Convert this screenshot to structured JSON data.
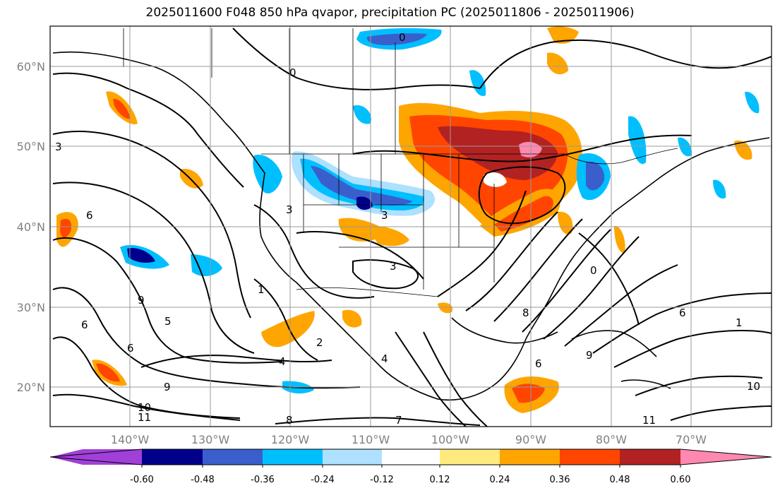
{
  "title": "2025011600 F048 850 hPa qvapor, precipitation PC (2025011806 - 2025011906)",
  "map": {
    "lat_ticks": [
      "60°N",
      "50°N",
      "40°N",
      "30°N",
      "20°N"
    ],
    "lon_ticks": [
      "140°W",
      "130°W",
      "120°W",
      "110°W",
      "100°W",
      "90°W",
      "80°W",
      "70°W"
    ],
    "lat_range": [
      15,
      65
    ],
    "lon_range": [
      -150,
      -60
    ],
    "grid": true,
    "contour_labels": [
      "0",
      "0",
      "0",
      "3",
      "3",
      "3",
      "3",
      "6",
      "6",
      "6",
      "6",
      "9",
      "9",
      "10",
      "11",
      "11",
      "8",
      "8",
      "7",
      "4",
      "4",
      "2",
      "1",
      "1",
      "5",
      "6",
      "9",
      "10"
    ]
  },
  "colorbar": {
    "ticks": [
      "-0.60",
      "-0.48",
      "-0.36",
      "-0.24",
      "-0.12",
      "0.12",
      "0.24",
      "0.36",
      "0.48",
      "0.60"
    ],
    "colors": [
      "#a040d8",
      "#00008b",
      "#3a5fcd",
      "#00bfff",
      "#aee0ff",
      "#ffffff",
      "#ffea80",
      "#ffa500",
      "#ff4500",
      "#b22222",
      "#ff88b0"
    ]
  }
}
